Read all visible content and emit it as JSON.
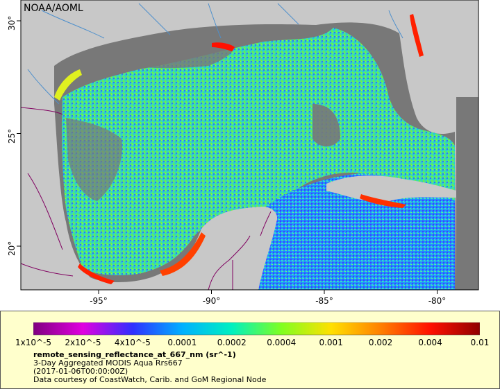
{
  "map": {
    "credit": "NOAA/AOML",
    "x_ticks": [
      {
        "label": "-95°",
        "lon": -95
      },
      {
        "label": "-90°",
        "lon": -90
      },
      {
        "label": "-85°",
        "lon": -85
      },
      {
        "label": "-80°",
        "lon": -80
      }
    ],
    "y_ticks": [
      {
        "label": "30°",
        "lat": 30
      },
      {
        "label": "25°",
        "lat": 25
      },
      {
        "label": "20°",
        "lat": 20
      }
    ],
    "colors": {
      "land": "#c8c8c8",
      "no_data": "#787878",
      "rivers": "#4d8fcc",
      "borders": "#800060"
    }
  },
  "legend": {
    "colorbar_labels": [
      "1x10^-5",
      "2x10^-5",
      "4x10^-5",
      "0.0001",
      "0.0002",
      "0.0004",
      "0.001",
      "0.002",
      "0.004",
      "0.01"
    ],
    "colorbar_colors": [
      "#800080",
      "#e000e0",
      "#3030ff",
      "#00b0ff",
      "#00f0c0",
      "#80ff20",
      "#ffe000",
      "#ff8000",
      "#ff1000",
      "#900000"
    ],
    "variable": "remote_sensing_reflectance_at_667_nm (sr^-1)",
    "dataset": "3-Day Aggregated MODIS Aqua Rrs667",
    "time": "(2017-01-06T00:00:00Z)",
    "courtesy": "Data courtesy of CoastWatch, Carib. and GoM Regional Node"
  }
}
